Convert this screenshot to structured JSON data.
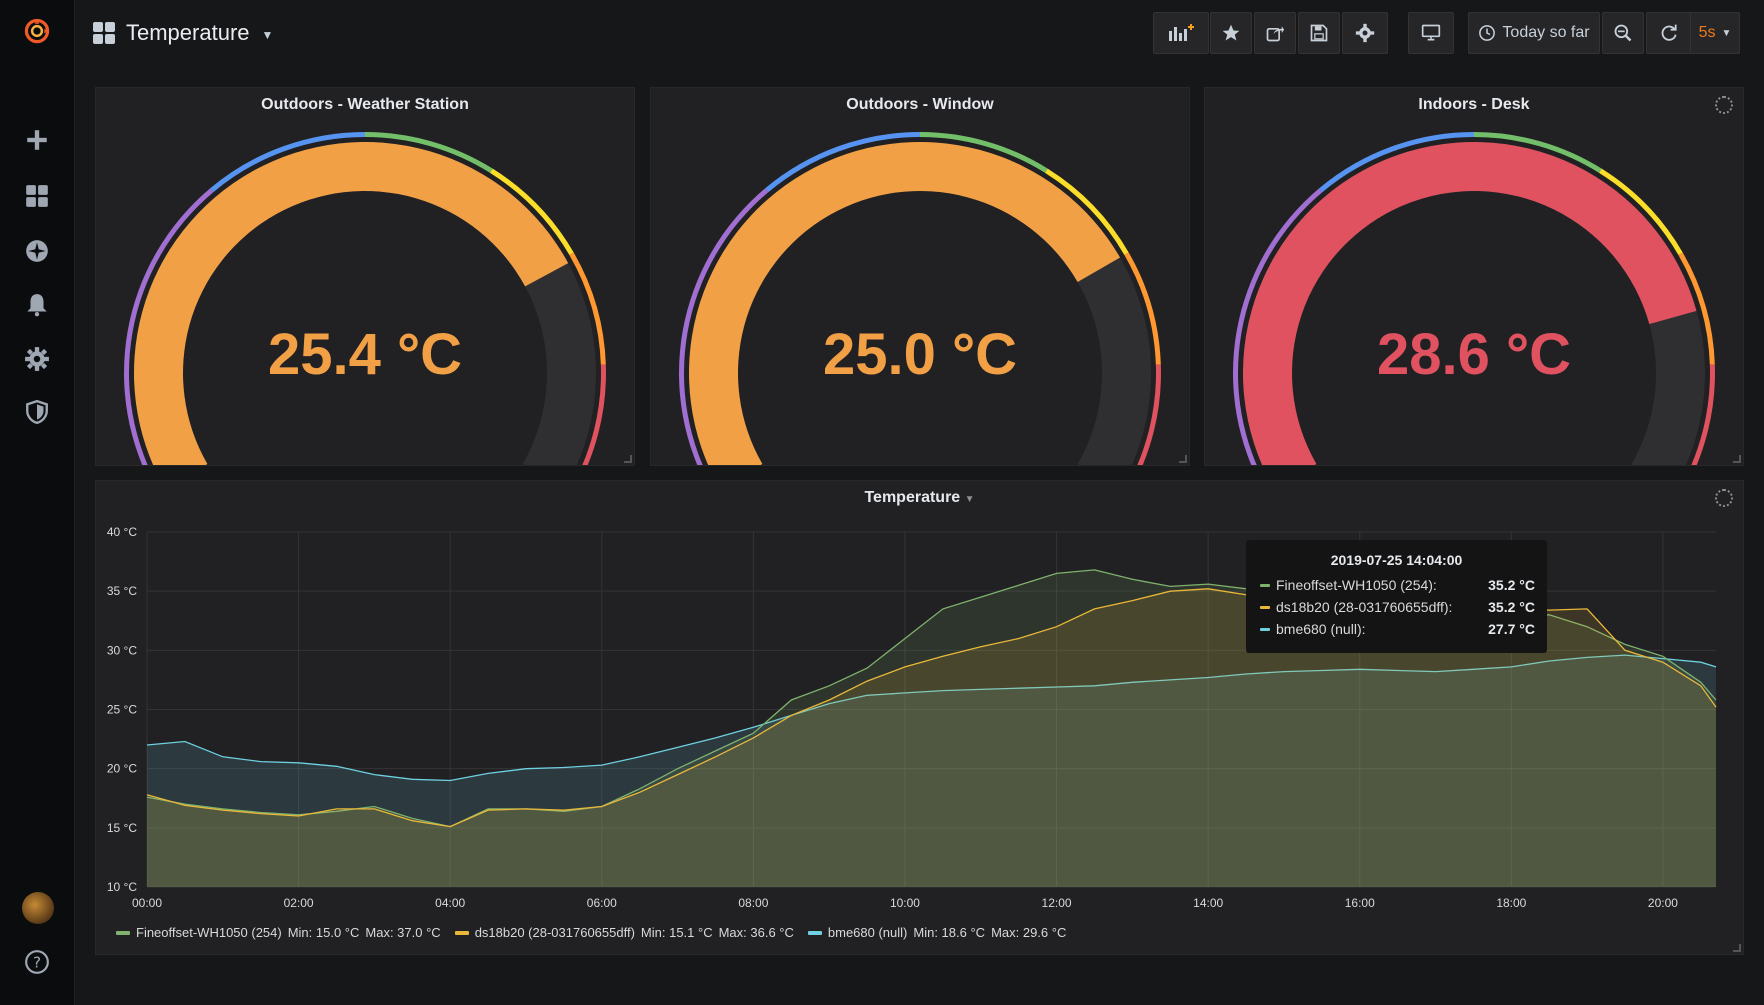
{
  "dashboard": {
    "title": "Temperature"
  },
  "toolbar": {
    "time_range_label": "Today so far",
    "refresh_interval": "5s"
  },
  "gauges": [
    {
      "title": "Outdoors - Weather Station",
      "value": 25.4,
      "display": "25.4 °C",
      "color": "#f2a046"
    },
    {
      "title": "Outdoors - Window",
      "value": 25.0,
      "display": "25.0 °C",
      "color": "#f2a046"
    },
    {
      "title": "Indoors - Desk",
      "value": 28.6,
      "display": "28.6 °C",
      "color": "#e05260"
    }
  ],
  "graph": {
    "title": "Temperature",
    "tooltip": {
      "time": "2019-07-25 14:04:00",
      "rows": [
        {
          "name": "Fineoffset-WH1050 (254):",
          "value": "35.2 °C",
          "color": "#7eb26d"
        },
        {
          "name": "ds18b20 (28-031760655dff):",
          "value": "35.2 °C",
          "color": "#eab839"
        },
        {
          "name": "bme680 (null):",
          "value": "27.7 °C",
          "color": "#6ed0e0"
        }
      ]
    },
    "legend": [
      {
        "name": "Fineoffset-WH1050 (254)",
        "min": "Min: 15.0 °C",
        "max": "Max: 37.0 °C",
        "color": "#7eb26d"
      },
      {
        "name": "ds18b20 (28-031760655dff)",
        "min": "Min: 15.1 °C",
        "max": "Max: 36.6 °C",
        "color": "#eab839"
      },
      {
        "name": "bme680 (null)",
        "min": "Min: 18.6 °C",
        "max": "Max: 29.6 °C",
        "color": "#6ed0e0"
      }
    ]
  },
  "chart_data": {
    "type": "area",
    "title": "Temperature",
    "x_ticks": [
      "00:00",
      "02:00",
      "04:00",
      "06:00",
      "08:00",
      "10:00",
      "12:00",
      "14:00",
      "16:00",
      "18:00",
      "20:00"
    ],
    "y_ticks": [
      "10 °C",
      "15 °C",
      "20 °C",
      "25 °C",
      "30 °C",
      "35 °C",
      "40 °C"
    ],
    "ylim": [
      10,
      40
    ],
    "xlim_hours": [
      0,
      20.7
    ],
    "grid": true,
    "legend_position": "bottom",
    "x_hours": [
      0,
      0.5,
      1,
      1.5,
      2,
      2.5,
      3,
      3.5,
      4,
      4.5,
      5,
      5.5,
      6,
      6.5,
      7,
      7.5,
      8,
      8.5,
      9,
      9.5,
      10,
      10.5,
      11,
      11.5,
      12,
      12.5,
      13,
      13.5,
      14,
      14.5,
      15,
      15.5,
      16,
      16.5,
      17,
      17.5,
      18,
      18.5,
      19,
      19.5,
      20,
      20.5,
      20.7
    ],
    "series": [
      {
        "name": "Fineoffset-WH1050 (254)",
        "color": "#7eb26d",
        "values": [
          17.6,
          17.0,
          16.6,
          16.3,
          16.1,
          16.4,
          16.8,
          15.8,
          15.1,
          16.6,
          16.6,
          16.4,
          16.8,
          18.3,
          20.0,
          21.5,
          23.0,
          25.8,
          27.0,
          28.5,
          31.0,
          33.5,
          34.5,
          35.5,
          36.5,
          36.8,
          36.0,
          35.4,
          35.6,
          35.2,
          33.6,
          34.0,
          33.8,
          32.8,
          32.5,
          33.0,
          32.8,
          33.0,
          32.0,
          30.5,
          29.5,
          27.3,
          25.8
        ]
      },
      {
        "name": "ds18b20 (28-031760655dff)",
        "color": "#eab839",
        "values": [
          17.8,
          16.9,
          16.5,
          16.2,
          16.0,
          16.6,
          16.6,
          15.6,
          15.1,
          16.5,
          16.6,
          16.5,
          16.8,
          18.0,
          19.5,
          21.0,
          22.6,
          24.5,
          25.8,
          27.4,
          28.6,
          29.5,
          30.3,
          31.0,
          32.0,
          33.5,
          34.2,
          35.0,
          35.2,
          34.7,
          33.4,
          33.6,
          33.8,
          32.9,
          32.6,
          33.2,
          33.5,
          33.4,
          33.5,
          30.0,
          29.0,
          27.0,
          25.2
        ]
      },
      {
        "name": "bme680 (null)",
        "color": "#6ed0e0",
        "values": [
          22.0,
          22.3,
          21.0,
          20.6,
          20.5,
          20.2,
          19.5,
          19.1,
          19.0,
          19.6,
          20.0,
          20.1,
          20.3,
          21.0,
          21.8,
          22.6,
          23.5,
          24.5,
          25.5,
          26.2,
          26.4,
          26.6,
          26.7,
          26.8,
          26.9,
          27.0,
          27.3,
          27.5,
          27.7,
          28.0,
          28.2,
          28.3,
          28.4,
          28.3,
          28.2,
          28.4,
          28.6,
          29.1,
          29.4,
          29.6,
          29.3,
          29.0,
          28.6
        ]
      }
    ]
  },
  "icons": {
    "logo": "grafana-logo-icon",
    "sidebar": [
      "plus-icon",
      "dashboards-icon",
      "explore-icon",
      "bell-icon",
      "gear-icon",
      "shield-icon",
      "help-icon"
    ]
  }
}
